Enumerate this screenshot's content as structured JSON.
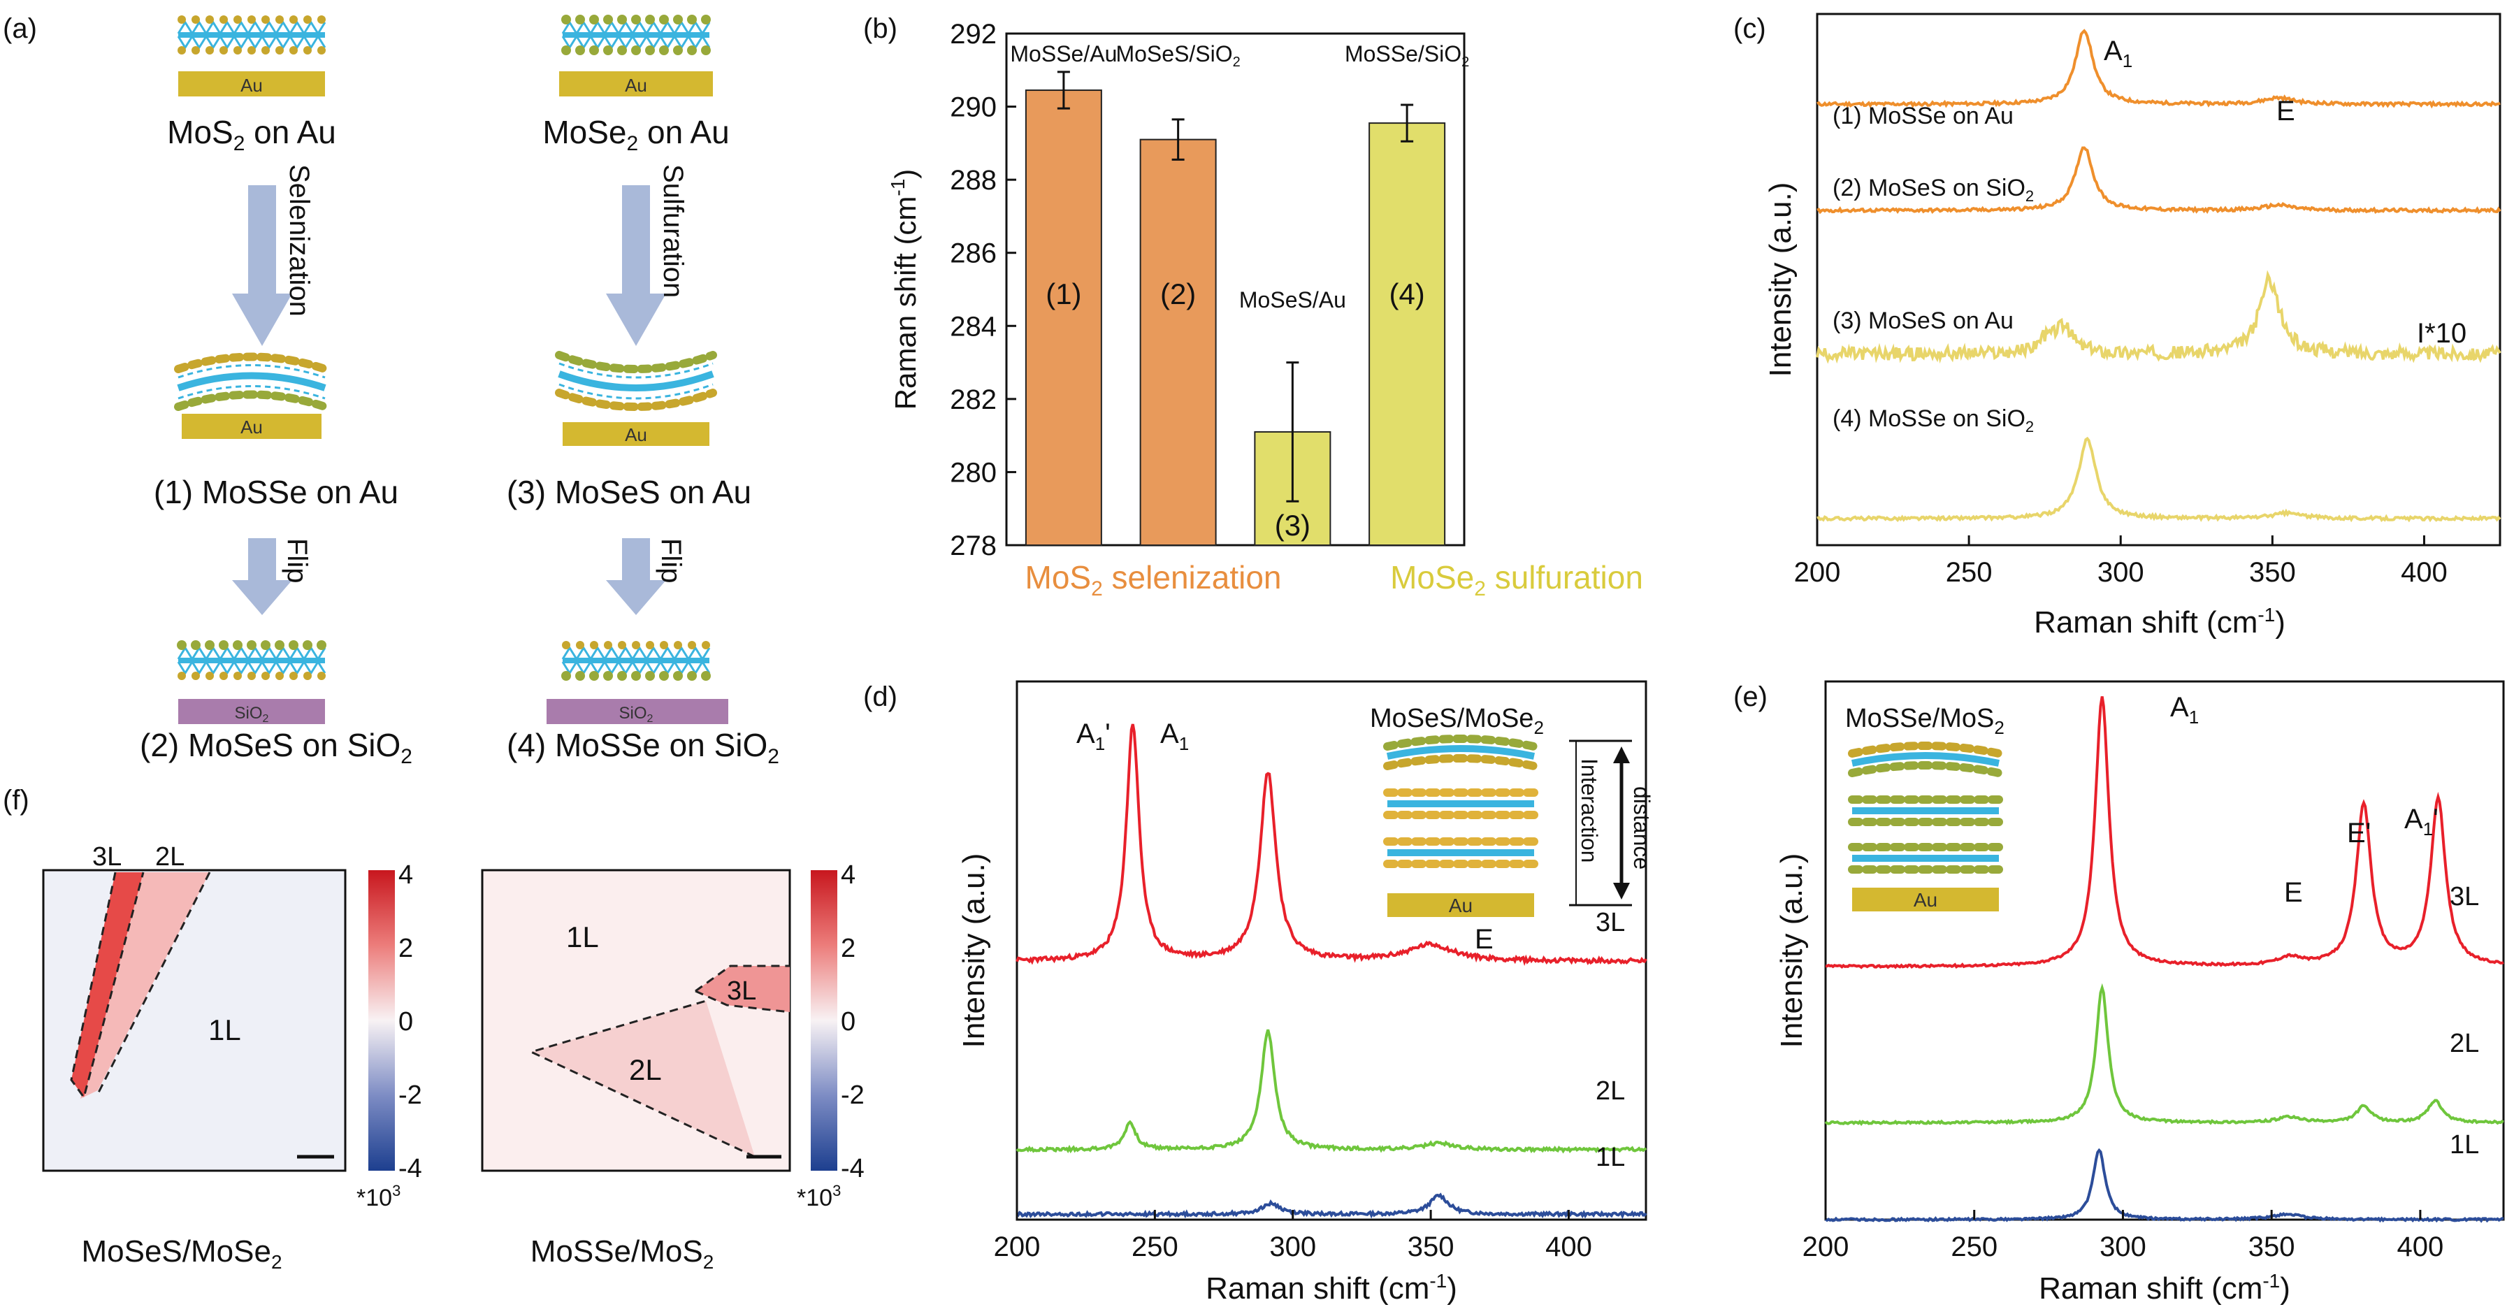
{
  "panel_labels": {
    "a": "(a)",
    "b": "(b)",
    "c": "(c)",
    "d": "(d)",
    "e": "(e)",
    "f": "(f)"
  },
  "panel_a": {
    "au": "Au",
    "sio2_base": "SiO",
    "sio2_sub": "2",
    "top_left": {
      "base": "MoS",
      "sub": "2",
      "rest": " on Au"
    },
    "top_right": {
      "base": "MoSe",
      "sub": "2",
      "rest": " on Au"
    },
    "arrow_left": "Selenization",
    "arrow_right": "Sulfuration",
    "flip": "Flip",
    "mid_left": "(1) MoSSe on Au",
    "mid_right": "(3)  MoSeS on Au",
    "bot_left": {
      "base": "(2)  MoSeS on SiO",
      "sub": "2"
    },
    "bot_right": {
      "base": "(4)  MoSSe on SiO",
      "sub": "2"
    },
    "colors": {
      "au": "#d4b830",
      "sio2": "#a97cac",
      "arrow": "#a9b9d9",
      "mo": "#3ab4df",
      "s": "#c7a62d",
      "se": "#98a93a"
    }
  },
  "chart_data": [
    {
      "panel": "b",
      "type": "bar",
      "categories": [
        "(1)",
        "(2)",
        "(3)",
        "(4)"
      ],
      "values": [
        290.45,
        289.1,
        281.1,
        289.55
      ],
      "errors": [
        0.5,
        0.55,
        1.9,
        0.5
      ],
      "bar_labels": [
        "MoSSe/Au",
        "MoSeS/SiO",
        "MoSeS/Au",
        "MoSSe/SiO"
      ],
      "bar_label_subs": [
        "",
        "2",
        "",
        "2"
      ],
      "colors": [
        "#e89a5b",
        "#e89a5b",
        "#e1de6b",
        "#e1de6b"
      ],
      "ylabel": "Raman shift (cm",
      "ylabel_sup": "-1",
      "ylabel_close": ")",
      "ylim": [
        278,
        292
      ],
      "yticks": [
        278,
        280,
        282,
        284,
        286,
        288,
        290,
        292
      ],
      "group_labels": [
        {
          "base": "MoS",
          "sub": "2",
          "rest": " selenization",
          "color": "#e88e3e"
        },
        {
          "base": "MoSe",
          "sub": "2",
          "rest": " sulfuration",
          "color": "#d9cb3c"
        }
      ]
    },
    {
      "panel": "c",
      "type": "line",
      "xlabel": "Raman shift (cm",
      "xlabel_sup": "-1",
      "xlabel_close": ")",
      "ylabel": "Intensity (a.u.)",
      "xlim": [
        200,
        425
      ],
      "xticks": [
        200,
        250,
        300,
        350,
        400
      ],
      "series": [
        {
          "name": "(1) MoSSe on Au",
          "color": "#ef8f2c",
          "baseline": 0.83,
          "peaks": [
            [
              288,
              0.14,
              3.5
            ],
            [
              352,
              0.012,
              6
            ]
          ],
          "noise": 0.003
        },
        {
          "name": "(2) MoSeS on SiO",
          "sub": "2",
          "color": "#ef8f2c",
          "baseline": 0.63,
          "peaks": [
            [
              288,
              0.12,
              3.5
            ],
            [
              352,
              0.01,
              6
            ]
          ],
          "noise": 0.003
        },
        {
          "name": "(3) MoSeS on Au",
          "color": "#e8d56a",
          "baseline": 0.36,
          "peaks": [
            [
              281,
              0.05,
              4
            ],
            [
              349,
              0.14,
              4
            ],
            [
              275,
              0.02,
              3
            ]
          ],
          "noise": 0.012
        },
        {
          "name": "(4) MoSSe on SiO",
          "sub": "2",
          "color": "#e8d56a",
          "baseline": 0.05,
          "peaks": [
            [
              289,
              0.15,
              3.5
            ],
            [
              355,
              0.01,
              6
            ]
          ],
          "noise": 0.003
        }
      ],
      "annotations": [
        "A",
        "E",
        "I*10"
      ]
    },
    {
      "panel": "d",
      "type": "line",
      "xlabel": "Raman shift (cm",
      "xlabel_sup": "-1",
      "xlabel_close": ")",
      "ylabel": "Intensity (a.u.)",
      "xlim": [
        200,
        428
      ],
      "xticks": [
        200,
        250,
        300,
        350,
        400
      ],
      "series": [
        {
          "name": "3L",
          "color": "#e8202a",
          "baseline": 0.48,
          "peaks": [
            [
              242,
              0.44,
              2.8
            ],
            [
              291,
              0.35,
              3.5
            ],
            [
              350,
              0.03,
              10
            ]
          ],
          "noise": 0.004
        },
        {
          "name": "2L",
          "color": "#6fc63c",
          "baseline": 0.13,
          "peaks": [
            [
              241,
              0.05,
              2.5
            ],
            [
              291,
              0.22,
              3
            ],
            [
              353,
              0.012,
              6
            ]
          ],
          "noise": 0.003
        },
        {
          "name": "1L",
          "color": "#2c4d9a",
          "baseline": 0.01,
          "peaks": [
            [
              292,
              0.02,
              4
            ],
            [
              353,
              0.035,
              4
            ]
          ],
          "noise": 0.003
        }
      ],
      "inset_title": "MoSeS/MoSe",
      "inset_title_sub": "2",
      "inset_label1": "Interaction",
      "inset_label2": "distance",
      "annotations": [
        "A",
        "A",
        "E"
      ]
    },
    {
      "panel": "e",
      "type": "line",
      "xlabel": "Raman shift (cm",
      "xlabel_sup": "-1",
      "xlabel_close": ")",
      "ylabel": "Intensity (a.u.)",
      "xlim": [
        200,
        428
      ],
      "xticks": [
        200,
        250,
        300,
        350,
        400
      ],
      "series": [
        {
          "name": "3L",
          "color": "#e8202a",
          "baseline": 0.47,
          "peaks": [
            [
              293,
              0.5,
              2.8
            ],
            [
              356,
              0.015,
              5
            ],
            [
              381,
              0.3,
              3
            ],
            [
              406,
              0.31,
              3
            ]
          ],
          "noise": 0.002
        },
        {
          "name": "2L",
          "color": "#6fc63c",
          "baseline": 0.18,
          "peaks": [
            [
              293,
              0.25,
              2.5
            ],
            [
              356,
              0.01,
              5
            ],
            [
              381,
              0.03,
              3
            ],
            [
              405,
              0.04,
              3
            ]
          ],
          "noise": 0.002
        },
        {
          "name": "1L",
          "color": "#2c4d9a",
          "baseline": 0.0,
          "peaks": [
            [
              292,
              0.13,
              2.5
            ],
            [
              355,
              0.01,
              6
            ]
          ],
          "noise": 0.002
        }
      ],
      "inset_title": "MoSSe/MoS",
      "inset_title_sub": "2",
      "annotations": [
        "A",
        "E'",
        "A",
        "E"
      ]
    },
    {
      "panel": "f",
      "type": "heatmap",
      "maps": [
        {
          "caption": "MoSeS/MoSe",
          "caption_sub": "2",
          "regions": [
            "3L",
            "2L",
            "1L"
          ]
        },
        {
          "caption": "MoSSe/MoS",
          "caption_sub": "2",
          "regions": [
            "1L",
            "2L",
            "3L"
          ]
        }
      ],
      "colorbar_ticks": [
        "4",
        "2",
        "0",
        "-2",
        "-4"
      ],
      "colorbar_unit": "*10",
      "colorbar_unit_sup": "3",
      "colorbar_range": [
        -4,
        4
      ]
    }
  ],
  "peak_labels": {
    "a1": "A",
    "a1_sub": "1",
    "a1p_sub": "1",
    "a1p_prime": "'",
    "e": "E",
    "eprime": "E'",
    "i10": "I*10"
  }
}
